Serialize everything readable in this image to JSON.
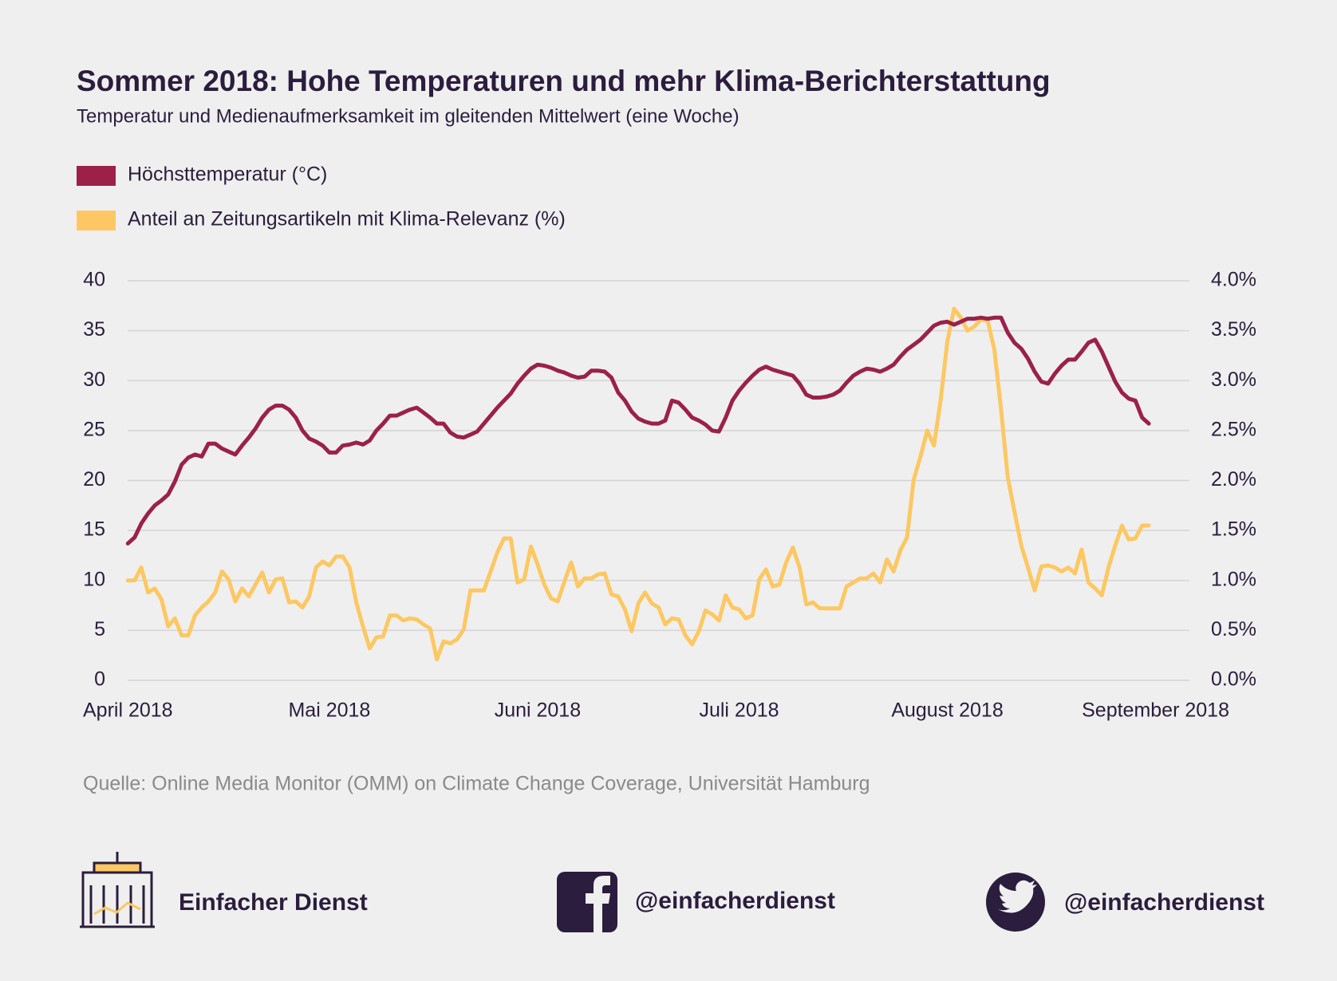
{
  "chart_data": {
    "type": "line",
    "title": "Sommer 2018: Hohe Temperaturen und mehr Klima-Berichterstattung",
    "subtitle": "Temperatur und Medienaufmerksamkeit im gleitenden Mittelwert (eine Woche)",
    "source": "Quelle: Online Media Monitor (OMM) on Climate Change Coverage, Universität Hamburg",
    "grid": true,
    "categories": [
      "April 2018",
      null,
      null,
      null,
      null,
      null,
      null,
      null,
      null,
      null,
      null,
      null,
      null,
      null,
      null,
      null,
      null,
      null,
      null,
      null,
      null,
      null,
      null,
      null,
      null,
      null,
      null,
      null,
      null,
      null,
      "Mai 2018",
      null,
      null,
      null,
      null,
      null,
      null,
      null,
      null,
      null,
      null,
      null,
      null,
      null,
      null,
      null,
      null,
      null,
      null,
      null,
      null,
      null,
      null,
      null,
      null,
      null,
      null,
      null,
      null,
      null,
      null,
      "Juni 2018",
      null,
      null,
      null,
      null,
      null,
      null,
      null,
      null,
      null,
      null,
      null,
      null,
      null,
      null,
      null,
      null,
      null,
      null,
      null,
      null,
      null,
      null,
      null,
      null,
      null,
      null,
      null,
      null,
      null,
      "Juli 2018",
      null,
      null,
      null,
      null,
      null,
      null,
      null,
      null,
      null,
      null,
      null,
      null,
      null,
      null,
      null,
      null,
      null,
      null,
      null,
      null,
      null,
      null,
      null,
      null,
      null,
      null,
      null,
      null,
      null,
      null,
      "August 2018",
      null,
      null,
      null,
      null,
      null,
      null,
      null,
      null,
      null,
      null,
      null,
      null,
      null,
      null,
      null,
      null,
      null,
      null,
      null,
      null,
      null,
      null,
      null,
      null,
      null,
      null,
      null,
      null,
      null,
      null,
      "September 2018"
    ],
    "ylim": [
      0,
      40
    ],
    "yticks": [
      0,
      5,
      10,
      15,
      20,
      25,
      30,
      35,
      40
    ],
    "y2lim": [
      0,
      4
    ],
    "y2ticks": [
      {
        "value": 0,
        "label": "0.0%"
      },
      {
        "value": 0.5,
        "label": "0.5%"
      },
      {
        "value": 1,
        "label": "1.0%"
      },
      {
        "value": 1.5,
        "label": "1.5%"
      },
      {
        "value": 2,
        "label": "2.0%"
      },
      {
        "value": 2.5,
        "label": "2.5%"
      },
      {
        "value": 3,
        "label": "3.0%"
      },
      {
        "value": 3.5,
        "label": "3.5%"
      },
      {
        "value": 4,
        "label": "4.0%"
      }
    ],
    "series": [
      {
        "name": "Höchsttemperatur (°C)",
        "color": "#9b2149",
        "values": [
          13.7,
          14.3,
          15.7,
          16.7,
          17.5,
          18.0,
          18.6,
          19.9,
          21.6,
          22.3,
          22.6,
          22.4,
          23.7,
          23.7,
          23.2,
          22.9,
          22.6,
          23.5,
          24.3,
          25.2,
          26.3,
          27.1,
          27.5,
          27.5,
          27.1,
          26.3,
          25.0,
          24.2,
          23.9,
          23.5,
          22.8,
          22.8,
          23.5,
          23.6,
          23.8,
          23.6,
          24.0,
          25.0,
          25.7,
          26.5,
          26.5,
          26.8,
          27.1,
          27.3,
          26.8,
          26.3,
          25.7,
          25.7,
          24.8,
          24.4,
          24.3,
          24.6,
          24.9,
          25.7,
          26.5,
          27.3,
          28.0,
          28.7,
          29.7,
          30.5,
          31.2,
          31.6,
          31.5,
          31.3,
          31.0,
          30.8,
          30.5,
          30.3,
          30.4,
          31.0,
          31.0,
          30.9,
          30.3,
          28.8,
          28.0,
          26.9,
          26.2,
          25.9,
          25.7,
          25.7,
          26.0,
          28.0,
          27.8,
          27.1,
          26.3,
          26.0,
          25.6,
          25.0,
          24.9,
          26.3,
          28.0,
          29.0,
          29.8,
          30.5,
          31.1,
          31.4,
          31.1,
          30.9,
          30.7,
          30.5,
          29.7,
          28.6,
          28.3,
          28.3,
          28.4,
          28.6,
          29.0,
          29.8,
          30.5,
          30.9,
          31.2,
          31.1,
          30.9,
          31.2,
          31.6,
          32.4,
          33.1,
          33.6,
          34.1,
          34.8,
          35.5,
          35.8,
          35.9,
          35.6,
          35.9,
          36.2,
          36.2,
          36.3,
          36.2,
          36.3,
          36.3,
          34.8,
          33.8,
          33.2,
          32.2,
          30.9,
          29.9,
          29.7,
          30.7,
          31.5,
          32.1,
          32.1,
          32.9,
          33.8,
          34.1,
          32.9,
          31.4,
          29.9,
          28.8,
          28.2,
          28.0,
          26.3,
          25.7,
          null
        ]
      },
      {
        "name": "Anteil an Zeitungsartikeln mit Klima-Relevanz (%)",
        "color": "#fdc863",
        "axis": "y2",
        "values": [
          1.0,
          1.0,
          1.13,
          0.88,
          0.92,
          0.81,
          0.54,
          0.62,
          0.45,
          0.45,
          0.65,
          0.73,
          0.79,
          0.88,
          1.09,
          1.01,
          0.79,
          0.92,
          0.84,
          0.96,
          1.08,
          0.88,
          1.01,
          1.02,
          0.78,
          0.79,
          0.73,
          0.84,
          1.13,
          1.19,
          1.15,
          1.24,
          1.24,
          1.13,
          0.78,
          0.54,
          0.32,
          0.43,
          0.44,
          0.65,
          0.65,
          0.6,
          0.62,
          0.61,
          0.56,
          0.52,
          0.21,
          0.39,
          0.37,
          0.41,
          0.51,
          0.9,
          0.9,
          0.9,
          1.09,
          1.28,
          1.42,
          1.42,
          0.98,
          1.01,
          1.34,
          1.16,
          0.96,
          0.82,
          0.79,
          0.99,
          1.18,
          0.94,
          1.02,
          1.02,
          1.06,
          1.07,
          0.86,
          0.84,
          0.71,
          0.49,
          0.77,
          0.88,
          0.77,
          0.73,
          0.56,
          0.62,
          0.61,
          0.45,
          0.36,
          0.49,
          0.7,
          0.66,
          0.6,
          0.85,
          0.73,
          0.71,
          0.62,
          0.65,
          1.01,
          1.11,
          0.94,
          0.96,
          1.18,
          1.33,
          1.13,
          0.76,
          0.78,
          0.72,
          0.72,
          0.72,
          0.72,
          0.94,
          0.98,
          1.02,
          1.02,
          1.07,
          0.98,
          1.21,
          1.09,
          1.3,
          1.43,
          2.01,
          2.24,
          2.5,
          2.35,
          2.8,
          3.39,
          3.72,
          3.63,
          3.5,
          3.54,
          3.61,
          3.6,
          3.31,
          2.71,
          2.03,
          1.69,
          1.35,
          1.13,
          0.9,
          1.14,
          1.15,
          1.13,
          1.09,
          1.13,
          1.07,
          1.31,
          0.98,
          0.92,
          0.85,
          1.13,
          1.35,
          1.55,
          1.41,
          1.42,
          1.55,
          1.55,
          null
        ]
      }
    ]
  },
  "footer": {
    "brand": "Einfacher Dienst",
    "facebook": "@einfacherdienst",
    "twitter": "@einfacherdienst"
  }
}
